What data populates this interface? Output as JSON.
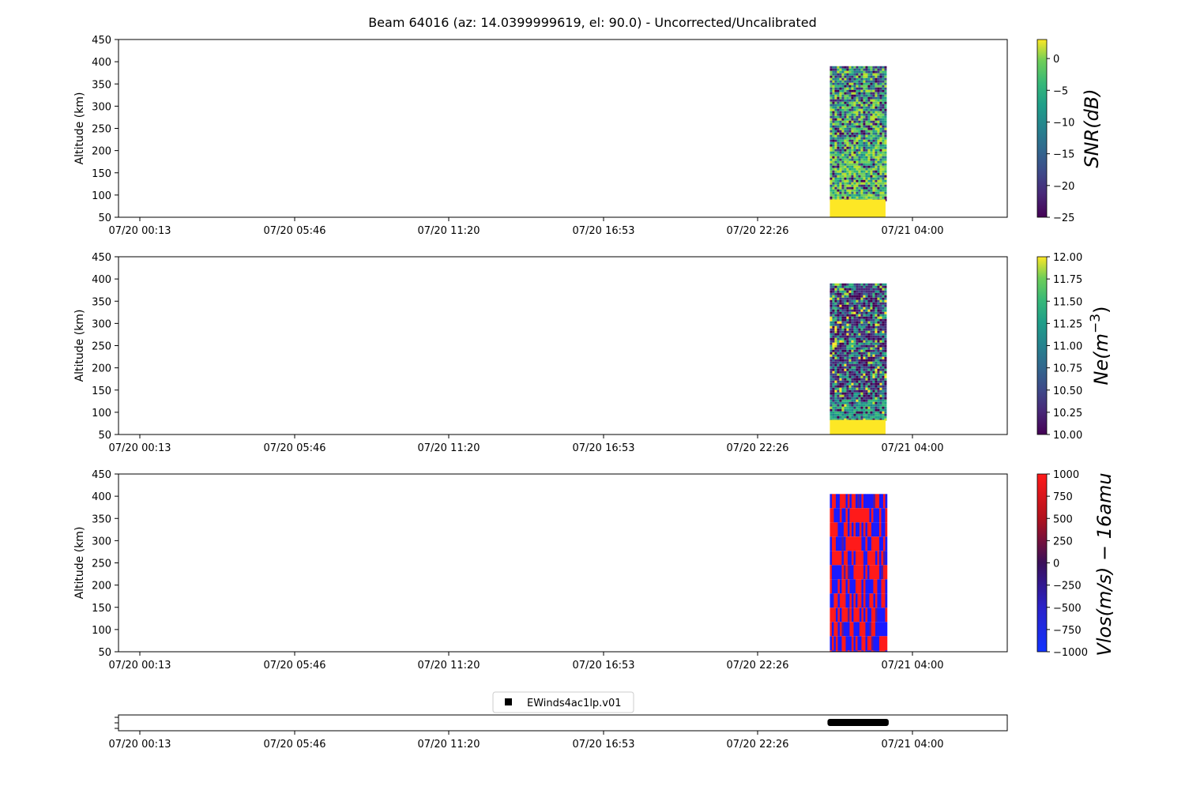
{
  "figure": {
    "title": "Beam 64016 (az: 14.0399999619, el: 90.0) - Uncorrected/Uncalibrated"
  },
  "chart_data": [
    {
      "type": "heatmap",
      "ylabel": "Altitude (km)",
      "ylim": [
        50,
        450
      ],
      "yticks": [
        50,
        100,
        150,
        200,
        250,
        300,
        350,
        400,
        450
      ],
      "xticks": [
        "07/20 00:13",
        "07/20 05:46",
        "07/20 11:20",
        "07/20 16:53",
        "07/20 22:26",
        "07/21 04:00"
      ],
      "data_time_range": [
        "07/21 01:00",
        "07/21 03:00"
      ],
      "data_altitude_range_km": [
        50,
        390
      ],
      "colorbar": {
        "label": "SNR(dB)",
        "range": [
          -25,
          3
        ],
        "ticks": [
          "0",
          "−5",
          "−10",
          "−15",
          "−20",
          "−25"
        ],
        "tick_values": [
          0,
          -5,
          -10,
          -15,
          -20,
          -25
        ],
        "colormap": "viridis"
      }
    },
    {
      "type": "heatmap",
      "ylabel": "Altitude (km)",
      "ylim": [
        50,
        450
      ],
      "yticks": [
        50,
        100,
        150,
        200,
        250,
        300,
        350,
        400,
        450
      ],
      "xticks": [
        "07/20 00:13",
        "07/20 05:46",
        "07/20 11:20",
        "07/20 16:53",
        "07/20 22:26",
        "07/21 04:00"
      ],
      "data_time_range": [
        "07/21 01:00",
        "07/21 03:00"
      ],
      "data_altitude_range_km": [
        50,
        390
      ],
      "colorbar": {
        "label": "Ne(m",
        "label_sup": "−3",
        "label_end": ")",
        "range": [
          10.0,
          12.0
        ],
        "ticks": [
          "12.00",
          "11.75",
          "11.50",
          "11.25",
          "11.00",
          "10.75",
          "10.50",
          "10.25",
          "10.00"
        ],
        "tick_values": [
          12.0,
          11.75,
          11.5,
          11.25,
          11.0,
          10.75,
          10.5,
          10.25,
          10.0
        ],
        "colormap": "viridis"
      }
    },
    {
      "type": "heatmap",
      "ylabel": "Altitude (km)",
      "ylim": [
        50,
        450
      ],
      "yticks": [
        50,
        100,
        150,
        200,
        250,
        300,
        350,
        400,
        450
      ],
      "xticks": [
        "07/20 00:13",
        "07/20 05:46",
        "07/20 11:20",
        "07/20 16:53",
        "07/20 22:26",
        "07/21 04:00"
      ],
      "data_time_range": [
        "07/21 01:00",
        "07/21 03:00"
      ],
      "data_altitude_range_km": [
        50,
        405
      ],
      "colorbar": {
        "label": "Vlos(m/s) − 16amu",
        "range": [
          -1000,
          1000
        ],
        "ticks": [
          "1000",
          "750",
          "500",
          "250",
          "0",
          "−250",
          "−500",
          "−750",
          "−1000"
        ],
        "tick_values": [
          1000,
          750,
          500,
          250,
          0,
          -250,
          -500,
          -750,
          -1000
        ],
        "colormap": "bwr"
      }
    },
    {
      "type": "scatter",
      "xticks": [
        "07/20 00:13",
        "07/20 05:46",
        "07/20 11:20",
        "07/20 16:53",
        "07/20 22:26",
        "07/21 04:00"
      ],
      "legend": {
        "label": "EWinds4ac1lp.v01",
        "placement": "top-center"
      },
      "series": [
        {
          "name": "EWinds4ac1lp.v01",
          "x_range": [
            "07/21 01:00",
            "07/21 03:00"
          ],
          "color": "#000000"
        }
      ]
    }
  ],
  "colors": {
    "red": "#ff1a1a",
    "blue": "#1a1aff",
    "viridis_yellow": "#fde725"
  }
}
